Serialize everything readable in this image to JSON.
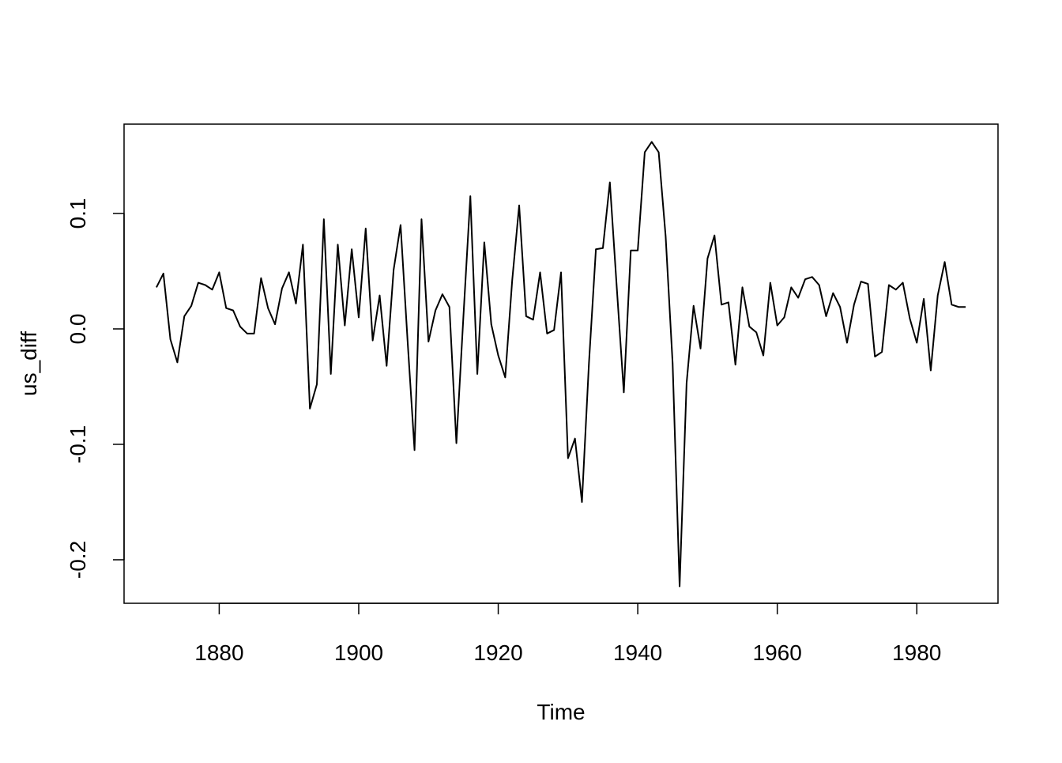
{
  "chart_data": {
    "type": "line",
    "x_label": "Time",
    "y_label": "us_diff",
    "x": [
      1871,
      1872,
      1873,
      1874,
      1875,
      1876,
      1877,
      1878,
      1879,
      1880,
      1881,
      1882,
      1883,
      1884,
      1885,
      1886,
      1887,
      1888,
      1889,
      1890,
      1891,
      1892,
      1893,
      1894,
      1895,
      1896,
      1897,
      1898,
      1899,
      1900,
      1901,
      1902,
      1903,
      1904,
      1905,
      1906,
      1907,
      1908,
      1909,
      1910,
      1911,
      1912,
      1913,
      1914,
      1915,
      1916,
      1917,
      1918,
      1919,
      1920,
      1921,
      1922,
      1923,
      1924,
      1925,
      1926,
      1927,
      1928,
      1929,
      1930,
      1931,
      1932,
      1933,
      1934,
      1935,
      1936,
      1937,
      1938,
      1939,
      1940,
      1941,
      1942,
      1943,
      1944,
      1945,
      1946,
      1947,
      1948,
      1949,
      1950,
      1951,
      1952,
      1953,
      1954,
      1955,
      1956,
      1957,
      1958,
      1959,
      1960,
      1961,
      1962,
      1963,
      1964,
      1965,
      1966,
      1967,
      1968,
      1969,
      1970,
      1971,
      1972,
      1973,
      1974,
      1975,
      1976,
      1977,
      1978,
      1979,
      1980,
      1981,
      1982,
      1983,
      1984,
      1985,
      1986,
      1987
    ],
    "series": [
      {
        "color": "#000000",
        "values": [
          0.036,
          0.048,
          -0.009,
          -0.029,
          0.011,
          0.02,
          0.04,
          0.038,
          0.034,
          0.049,
          0.018,
          0.016,
          0.002,
          -0.004,
          -0.004,
          0.044,
          0.018,
          0.004,
          0.035,
          0.049,
          0.022,
          0.073,
          -0.069,
          -0.048,
          0.095,
          -0.039,
          0.073,
          0.003,
          0.069,
          0.01,
          0.087,
          -0.01,
          0.029,
          -0.032,
          0.051,
          0.09,
          -0.01,
          -0.105,
          0.095,
          -0.011,
          0.016,
          0.03,
          0.019,
          -0.099,
          0.01,
          0.115,
          -0.039,
          0.075,
          0.004,
          -0.023,
          -0.042,
          0.042,
          0.107,
          0.011,
          0.008,
          0.049,
          -0.004,
          -0.001,
          0.049,
          -0.112,
          -0.095,
          -0.15,
          -0.03,
          0.069,
          0.07,
          0.127,
          0.035,
          -0.055,
          0.068,
          0.068,
          0.153,
          0.162,
          0.153,
          0.08,
          -0.03,
          -0.223,
          -0.047,
          0.02,
          -0.017,
          0.061,
          0.081,
          0.021,
          0.023,
          -0.031,
          0.036,
          0.002,
          -0.003,
          -0.023,
          0.04,
          0.003,
          0.01,
          0.036,
          0.027,
          0.043,
          0.045,
          0.038,
          0.011,
          0.031,
          0.019,
          -0.012,
          0.021,
          0.041,
          0.039,
          -0.024,
          -0.02,
          0.038,
          0.034,
          0.04,
          0.009,
          -0.012,
          0.026,
          -0.036,
          0.029,
          0.058,
          0.021,
          0.019,
          0.019
        ]
      }
    ],
    "xlim": [
      1866.36,
      1991.64
    ],
    "ylim": [
      -0.2377,
      0.1774
    ],
    "xticks": [
      1880,
      1900,
      1920,
      1940,
      1960,
      1980
    ],
    "yticks": [
      -0.2,
      -0.1,
      {
        "value": 0,
        "label": "0.0"
      },
      0.1
    ]
  }
}
